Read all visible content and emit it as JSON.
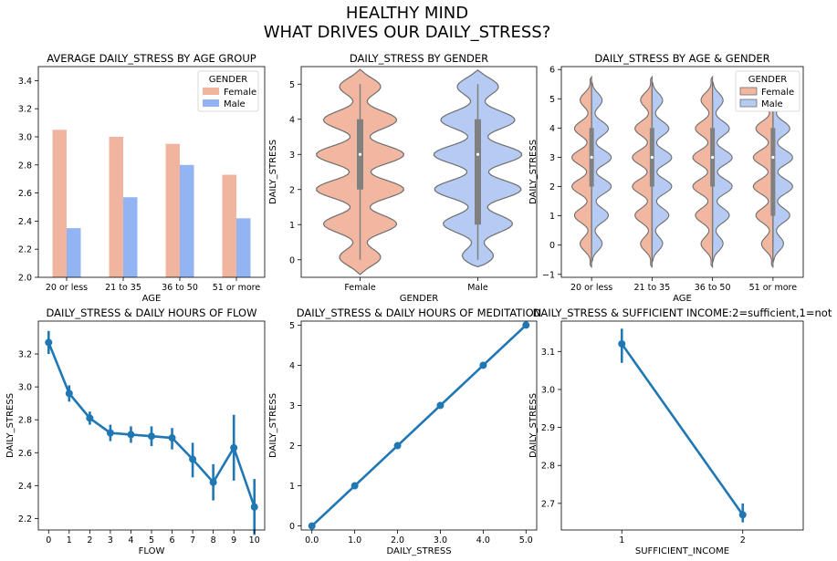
{
  "figure": {
    "title_line1": "HEALTHY MIND",
    "title_line2": "WHAT DRIVES OUR DAILY_STRESS?"
  },
  "colors": {
    "female": "#f0b59e",
    "male": "#93b4f2",
    "female_violin": "#f2b7a0",
    "male_violin": "#b6cbf4",
    "line": "#1f77b4",
    "box": "#808080"
  },
  "chart_data": [
    {
      "type": "bar",
      "title": "AVERAGE DAILY_STRESS BY AGE GROUP",
      "xlabel": "AGE",
      "ylabel": "",
      "categories": [
        "20 or less",
        "21 to 35",
        "36 to 50",
        "51 or more"
      ],
      "series": [
        {
          "name": "Female",
          "values": [
            3.05,
            3.0,
            2.95,
            2.73
          ]
        },
        {
          "name": "Male",
          "values": [
            2.35,
            2.57,
            2.8,
            2.42
          ]
        }
      ],
      "ylim": [
        2.0,
        3.5
      ],
      "yticks": [
        "2.0",
        "2.2",
        "2.4",
        "2.6",
        "2.8",
        "3.0",
        "3.2",
        "3.4"
      ],
      "legend": {
        "title": "GENDER",
        "position": "top-right"
      },
      "grid": false
    },
    {
      "type": "violin",
      "title": "DAILY_STRESS BY GENDER",
      "xlabel": "GENDER",
      "ylabel": "DAILY_STRESS",
      "categories": [
        "Female",
        "Male"
      ],
      "ylim": [
        -0.5,
        5.5
      ],
      "yticks": [
        "0",
        "1",
        "2",
        "3",
        "4",
        "5"
      ],
      "box": [
        {
          "min": 0,
          "q1": 2,
          "median": 3,
          "q3": 4,
          "max": 5
        },
        {
          "min": 0,
          "q1": 1,
          "median": 3,
          "q3": 4,
          "max": 5
        }
      ],
      "grid": false
    },
    {
      "type": "violin",
      "title": "DAILY_STRESS BY AGE & GENDER",
      "xlabel": "AGE",
      "ylabel": "DAILY_STRESS",
      "categories": [
        "20 or less",
        "21 to 35",
        "36 to 50",
        "51 or more"
      ],
      "split": true,
      "ylim": [
        -1.1,
        6.1
      ],
      "yticks": [
        "−1",
        "0",
        "1",
        "2",
        "3",
        "4",
        "5",
        "6"
      ],
      "box": [
        {
          "min": 0,
          "q1": 2,
          "median": 3,
          "q3": 4,
          "max": 5
        },
        {
          "min": 0,
          "q1": 2,
          "median": 3,
          "q3": 4,
          "max": 5
        },
        {
          "min": 0,
          "q1": 2,
          "median": 3,
          "q3": 4,
          "max": 5
        },
        {
          "min": 0,
          "q1": 1,
          "median": 3,
          "q3": 4,
          "max": 5
        }
      ],
      "legend": {
        "title": "GENDER",
        "entries": [
          "Female",
          "Male"
        ],
        "position": "top-right"
      },
      "grid": false
    },
    {
      "type": "line",
      "title": "DAILY_STRESS & DAILY HOURS OF FLOW",
      "xlabel": "FLOW",
      "ylabel": "DAILY_STRESS",
      "x": [
        0,
        1,
        2,
        3,
        4,
        5,
        6,
        7,
        8,
        9,
        10
      ],
      "xticks": [
        "0",
        "1",
        "2",
        "3",
        "4",
        "5",
        "6",
        "7",
        "8",
        "9",
        "10"
      ],
      "y": [
        3.27,
        2.96,
        2.81,
        2.72,
        2.71,
        2.7,
        2.69,
        2.56,
        2.42,
        2.63,
        2.27
      ],
      "err_low": [
        3.2,
        2.91,
        2.77,
        2.67,
        2.66,
        2.64,
        2.62,
        2.45,
        2.31,
        2.43,
        2.1
      ],
      "err_high": [
        3.34,
        3.01,
        2.85,
        2.77,
        2.76,
        2.76,
        2.75,
        2.66,
        2.53,
        2.83,
        2.44
      ],
      "ylim": [
        2.13,
        3.4
      ],
      "yticks": [
        "2.2",
        "2.4",
        "2.6",
        "2.8",
        "3.0",
        "3.2"
      ],
      "grid": false
    },
    {
      "type": "line",
      "title": "DAILY_STRESS & DAILY HOURS OF MEDITATION",
      "xlabel": "DAILY_STRESS",
      "ylabel": "DAILY_STRESS",
      "x": [
        0.0,
        1.0,
        2.0,
        3.0,
        4.0,
        5.0
      ],
      "xticks": [
        "0.0",
        "1.0",
        "2.0",
        "3.0",
        "4.0",
        "5.0"
      ],
      "y": [
        0,
        1,
        2,
        3,
        4,
        5
      ],
      "ylim": [
        -0.1,
        5.1
      ],
      "yticks": [
        "0",
        "1",
        "2",
        "3",
        "4",
        "5"
      ],
      "grid": false
    },
    {
      "type": "line",
      "title": "DAILY_STRESS & SUFFICIENT INCOME:2=sufficient,1=not",
      "xlabel": "SUFFICIENT_INCOME",
      "ylabel": "DAILY_STRESS",
      "x": [
        1,
        2
      ],
      "xticks": [
        "1",
        "2"
      ],
      "y": [
        3.12,
        2.67
      ],
      "err_low": [
        3.07,
        2.65
      ],
      "err_high": [
        3.16,
        2.7
      ],
      "ylim": [
        2.63,
        3.18
      ],
      "yticks": [
        "2.7",
        "2.8",
        "2.9",
        "3.0",
        "3.1"
      ],
      "grid": false
    }
  ]
}
